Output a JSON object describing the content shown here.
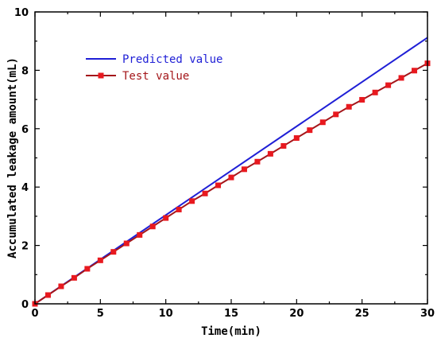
{
  "chart_data": {
    "type": "line",
    "xlabel": "Time(min)",
    "ylabel": "Accumulated leakage amount(mL)",
    "xlim": [
      0,
      30
    ],
    "ylim": [
      0,
      10
    ],
    "xticks": [
      0,
      5,
      10,
      15,
      20,
      25,
      30
    ],
    "yticks": [
      0,
      2,
      4,
      6,
      8,
      10
    ],
    "grid": false,
    "legend_position": "top-left",
    "series": [
      {
        "name": "Predicted value",
        "color": "#1f1fd6",
        "marker": "none",
        "x": [
          0,
          30
        ],
        "y": [
          0,
          9.12
        ]
      },
      {
        "name": "Test value",
        "color": "#a4161a",
        "marker_color": "#e8191f",
        "marker": "square",
        "x": [
          0,
          1,
          2,
          3,
          4,
          5,
          6,
          7,
          8,
          9,
          10,
          11,
          12,
          13,
          14,
          15,
          16,
          17,
          18,
          19,
          20,
          21,
          22,
          23,
          24,
          25,
          26,
          27,
          28,
          29,
          30
        ],
        "y": [
          0,
          0.3,
          0.6,
          0.89,
          1.2,
          1.49,
          1.78,
          2.07,
          2.36,
          2.65,
          2.94,
          3.23,
          3.52,
          3.78,
          4.06,
          4.33,
          4.61,
          4.87,
          5.14,
          5.41,
          5.68,
          5.95,
          6.22,
          6.49,
          6.75,
          6.99,
          7.24,
          7.49,
          7.74,
          7.99,
          8.24
        ]
      }
    ]
  }
}
